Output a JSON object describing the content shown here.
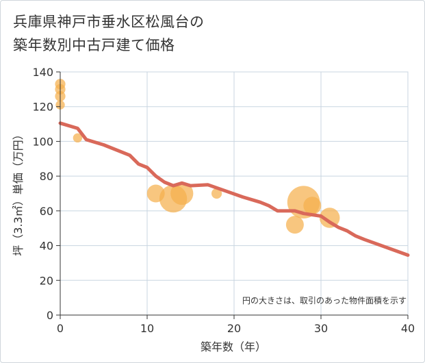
{
  "chart_data": {
    "type": "scatter",
    "title_lines": [
      "兵庫県神戸市垂水区松風台の",
      "築年数別中古戸建て価格"
    ],
    "xlabel": "築年数（年）",
    "ylabel": "坪（3.3㎡）単価（万円）",
    "xlim": [
      0,
      40
    ],
    "ylim": [
      0,
      140
    ],
    "xticks": [
      0,
      10,
      20,
      30,
      40
    ],
    "yticks": [
      0,
      20,
      40,
      60,
      80,
      100,
      120,
      140
    ],
    "grid": true,
    "note": "円の大きさは、取引のあった物件面積を示す",
    "colors": {
      "bubble": "#f5b04d",
      "trend": "#d9695a",
      "grid": "#c8d5e0",
      "axis": "#333333"
    },
    "bubbles": [
      {
        "x": 0,
        "y": 133,
        "size": 2
      },
      {
        "x": 0,
        "y": 130,
        "size": 2
      },
      {
        "x": 0,
        "y": 126,
        "size": 2
      },
      {
        "x": 0,
        "y": 121,
        "size": 1.5
      },
      {
        "x": 2,
        "y": 102,
        "size": 1.5
      },
      {
        "x": 11,
        "y": 70,
        "size": 5
      },
      {
        "x": 13,
        "y": 67,
        "size": 9
      },
      {
        "x": 14,
        "y": 70,
        "size": 7
      },
      {
        "x": 18,
        "y": 70,
        "size": 2
      },
      {
        "x": 27,
        "y": 52,
        "size": 5
      },
      {
        "x": 28,
        "y": 65,
        "size": 11
      },
      {
        "x": 29,
        "y": 63,
        "size": 5
      },
      {
        "x": 31,
        "y": 56,
        "size": 6
      }
    ],
    "trend": {
      "x": [
        0,
        2,
        3,
        5,
        8,
        9,
        10,
        11,
        12,
        13,
        14,
        15,
        17,
        19,
        21,
        23,
        24,
        25,
        27,
        28,
        30,
        31,
        32,
        33,
        34,
        35,
        40
      ],
      "y": [
        110.5,
        107.5,
        101,
        98,
        92,
        87,
        85,
        80,
        76.5,
        74.5,
        76,
        74.5,
        75,
        71.5,
        68,
        65,
        63,
        60,
        60,
        58.5,
        57,
        53.5,
        50.5,
        48.5,
        45.5,
        43.5,
        34.5
      ]
    }
  }
}
